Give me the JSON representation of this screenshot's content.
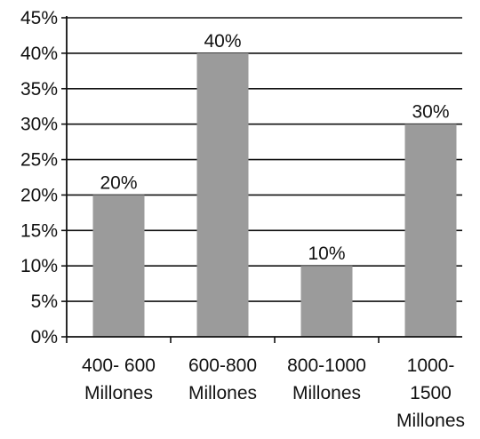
{
  "chart_data": {
    "type": "bar",
    "categories": [
      [
        "400- 600",
        "Millones"
      ],
      [
        "600-800",
        "Millones"
      ],
      [
        "800-1000",
        "Millones"
      ],
      [
        "1000-",
        "1500",
        "Millones"
      ]
    ],
    "values": [
      20,
      40,
      10,
      30
    ],
    "data_labels": [
      "20%",
      "40%",
      "10%",
      "30%"
    ],
    "yticks": [
      0,
      5,
      10,
      15,
      20,
      25,
      30,
      35,
      40,
      45
    ],
    "ytick_labels": [
      "0%",
      "5%",
      "10%",
      "15%",
      "20%",
      "25%",
      "30%",
      "35%",
      "40%",
      "45%"
    ],
    "ylim": [
      0,
      45
    ],
    "grid": true,
    "legend": "none",
    "bar_color": "#9b9b9b",
    "grid_color": "#111111"
  }
}
